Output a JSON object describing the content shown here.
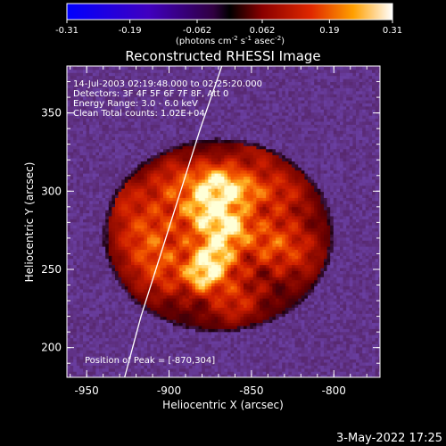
{
  "colorbar": {
    "ticks": [
      "-0.31",
      "-0.19",
      "-0.062",
      "0.062",
      "0.19",
      "0.31"
    ],
    "unit_parts": [
      "(photons cm",
      "-2",
      " s",
      "-1",
      " asec",
      "-2",
      ")"
    ]
  },
  "chart_data": {
    "type": "heatmap",
    "title": "Reconstructed RHESSI Image",
    "xlabel": "Heliocentric X (arcsec)",
    "ylabel": "Heliocentric Y (arcsec)",
    "xlim": [
      -962,
      -772
    ],
    "ylim": [
      181,
      380
    ],
    "x_ticks": [
      "-950",
      "-900",
      "-850",
      "-800"
    ],
    "y_ticks": [
      "200",
      "250",
      "300",
      "350"
    ],
    "value_range": [
      -0.31,
      0.31
    ],
    "colormap": "rhessi-purple-red-yellow",
    "colors": {
      "background": "#6a3fa2",
      "dark": "#1a0008",
      "mid": "#c81e00",
      "bright": "#ffffd0"
    },
    "info_lines": [
      "14-Jul-2003 02:19:48.000 to 02:25:20.000",
      "Detectors: 3F 4F 5F 6F 7F 8F, Att 0",
      "Energy Range: 3.0 - 6.0 keV",
      "Clean     Total counts: 1.02E+04"
    ],
    "peak_label": "Position of Peak = [-870,304]",
    "peak": [
      -870,
      304
    ],
    "limb_points": [
      [
        -927,
        181
      ],
      [
        -917,
        220
      ],
      [
        -905,
        260
      ],
      [
        -893,
        300
      ],
      [
        -881,
        340
      ],
      [
        -868,
        380
      ]
    ]
  },
  "footer": {
    "date": "3-May-2022 17:25"
  }
}
